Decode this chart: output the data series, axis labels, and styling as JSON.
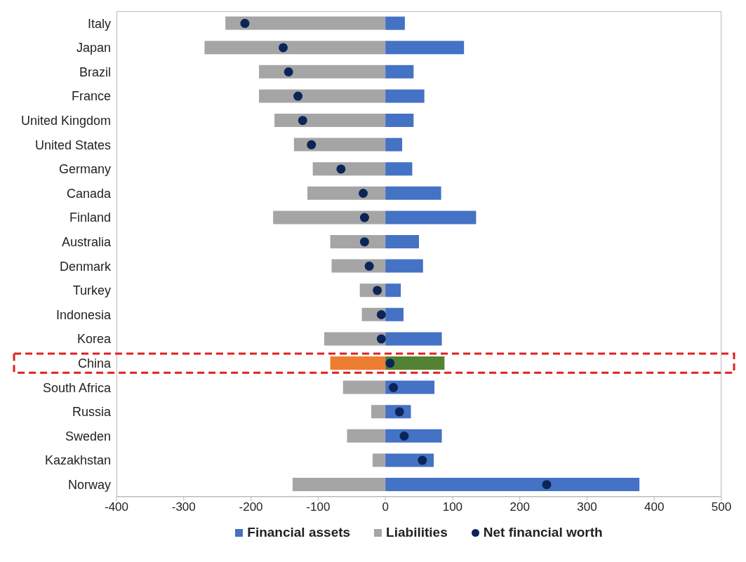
{
  "chart_data": {
    "type": "bar",
    "orientation": "horizontal",
    "stacked": true,
    "categories": [
      "Italy",
      "Japan",
      "Brazil",
      "France",
      "United Kingdom",
      "United States",
      "Germany",
      "Canada",
      "Finland",
      "Australia",
      "Denmark",
      "Turkey",
      "Indonesia",
      "Korea",
      "China",
      "South Africa",
      "Russia",
      "Sweden",
      "Kazakhstan",
      "Norway"
    ],
    "series": [
      {
        "name": "Financial assets",
        "color": "#4472c4",
        "colors": [
          "#4472c4",
          "#4472c4",
          "#4472c4",
          "#4472c4",
          "#4472c4",
          "#4472c4",
          "#4472c4",
          "#4472c4",
          "#4472c4",
          "#4472c4",
          "#4472c4",
          "#4472c4",
          "#4472c4",
          "#4472c4",
          "#548235",
          "#4472c4",
          "#4472c4",
          "#4472c4",
          "#4472c4",
          "#4472c4"
        ],
        "values": [
          29,
          117,
          42,
          58,
          42,
          25,
          40,
          83,
          135,
          50,
          56,
          23,
          27,
          84,
          88,
          73,
          38,
          84,
          72,
          378
        ]
      },
      {
        "name": "Liabilities",
        "color": "#a5a5a5",
        "colors": [
          "#a5a5a5",
          "#a5a5a5",
          "#a5a5a5",
          "#a5a5a5",
          "#a5a5a5",
          "#a5a5a5",
          "#a5a5a5",
          "#a5a5a5",
          "#a5a5a5",
          "#a5a5a5",
          "#a5a5a5",
          "#a5a5a5",
          "#a5a5a5",
          "#a5a5a5",
          "#ed7d31",
          "#a5a5a5",
          "#a5a5a5",
          "#a5a5a5",
          "#a5a5a5",
          "#a5a5a5"
        ],
        "values": [
          -238,
          -269,
          -188,
          -188,
          -165,
          -136,
          -108,
          -116,
          -167,
          -82,
          -80,
          -38,
          -35,
          -91,
          -82,
          -63,
          -21,
          -57,
          -19,
          -138
        ]
      },
      {
        "name": "Net financial worth",
        "type": "scatter",
        "color": "#0b2559",
        "values": [
          -209,
          -152,
          -144,
          -130,
          -123,
          -110,
          -66,
          -33,
          -31,
          -31,
          -24,
          -12,
          -6,
          -6,
          7,
          12,
          21,
          28,
          55,
          240
        ]
      }
    ],
    "xlim": [
      -400,
      500
    ],
    "xticks": [
      -400,
      -300,
      -200,
      -100,
      0,
      100,
      200,
      300,
      400,
      500
    ],
    "legend": "bottom",
    "marker": "circle"
  }
}
